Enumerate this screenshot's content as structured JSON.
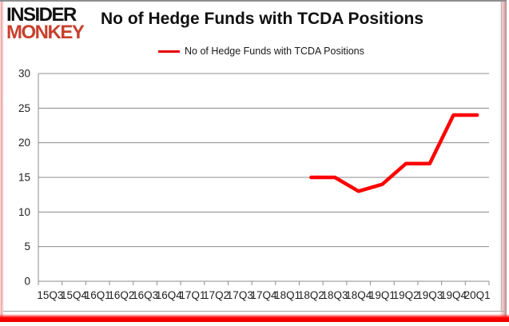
{
  "branding": {
    "logo_top": "INSIDER",
    "logo_bottom": "MONKEY"
  },
  "title": "No of Hedge Funds with TCDA Positions",
  "legend": {
    "label": "No of Hedge Funds with TCDA Positions"
  },
  "colors": {
    "series": "#ff0000",
    "grid": "#8c8c8c",
    "axis_text": "#1f1f1f",
    "logo_black": "#111111",
    "logo_red": "#c8402e",
    "bottom_bar": "#ff0000"
  },
  "chart_data": {
    "type": "line",
    "title": "No of Hedge Funds with TCDA Positions",
    "categories": [
      "15Q3",
      "15Q4",
      "16Q1",
      "16Q2",
      "16Q3",
      "16Q4",
      "17Q1",
      "17Q2",
      "17Q3",
      "17Q4",
      "18Q1",
      "18Q2",
      "18Q3",
      "18Q4",
      "19Q1",
      "19Q2",
      "19Q3",
      "19Q4",
      "20Q1"
    ],
    "series": [
      {
        "name": "No of Hedge Funds with TCDA Positions",
        "color": "#ff0000",
        "values": [
          null,
          null,
          null,
          null,
          null,
          null,
          null,
          null,
          null,
          null,
          null,
          15,
          15,
          13,
          14,
          17,
          17,
          24,
          24
        ]
      }
    ],
    "xlabel": "",
    "ylabel": "",
    "ylim": [
      0,
      30
    ],
    "yticks": [
      0,
      5,
      10,
      15,
      20,
      25,
      30
    ],
    "grid": true,
    "legend_position": "top-center"
  }
}
